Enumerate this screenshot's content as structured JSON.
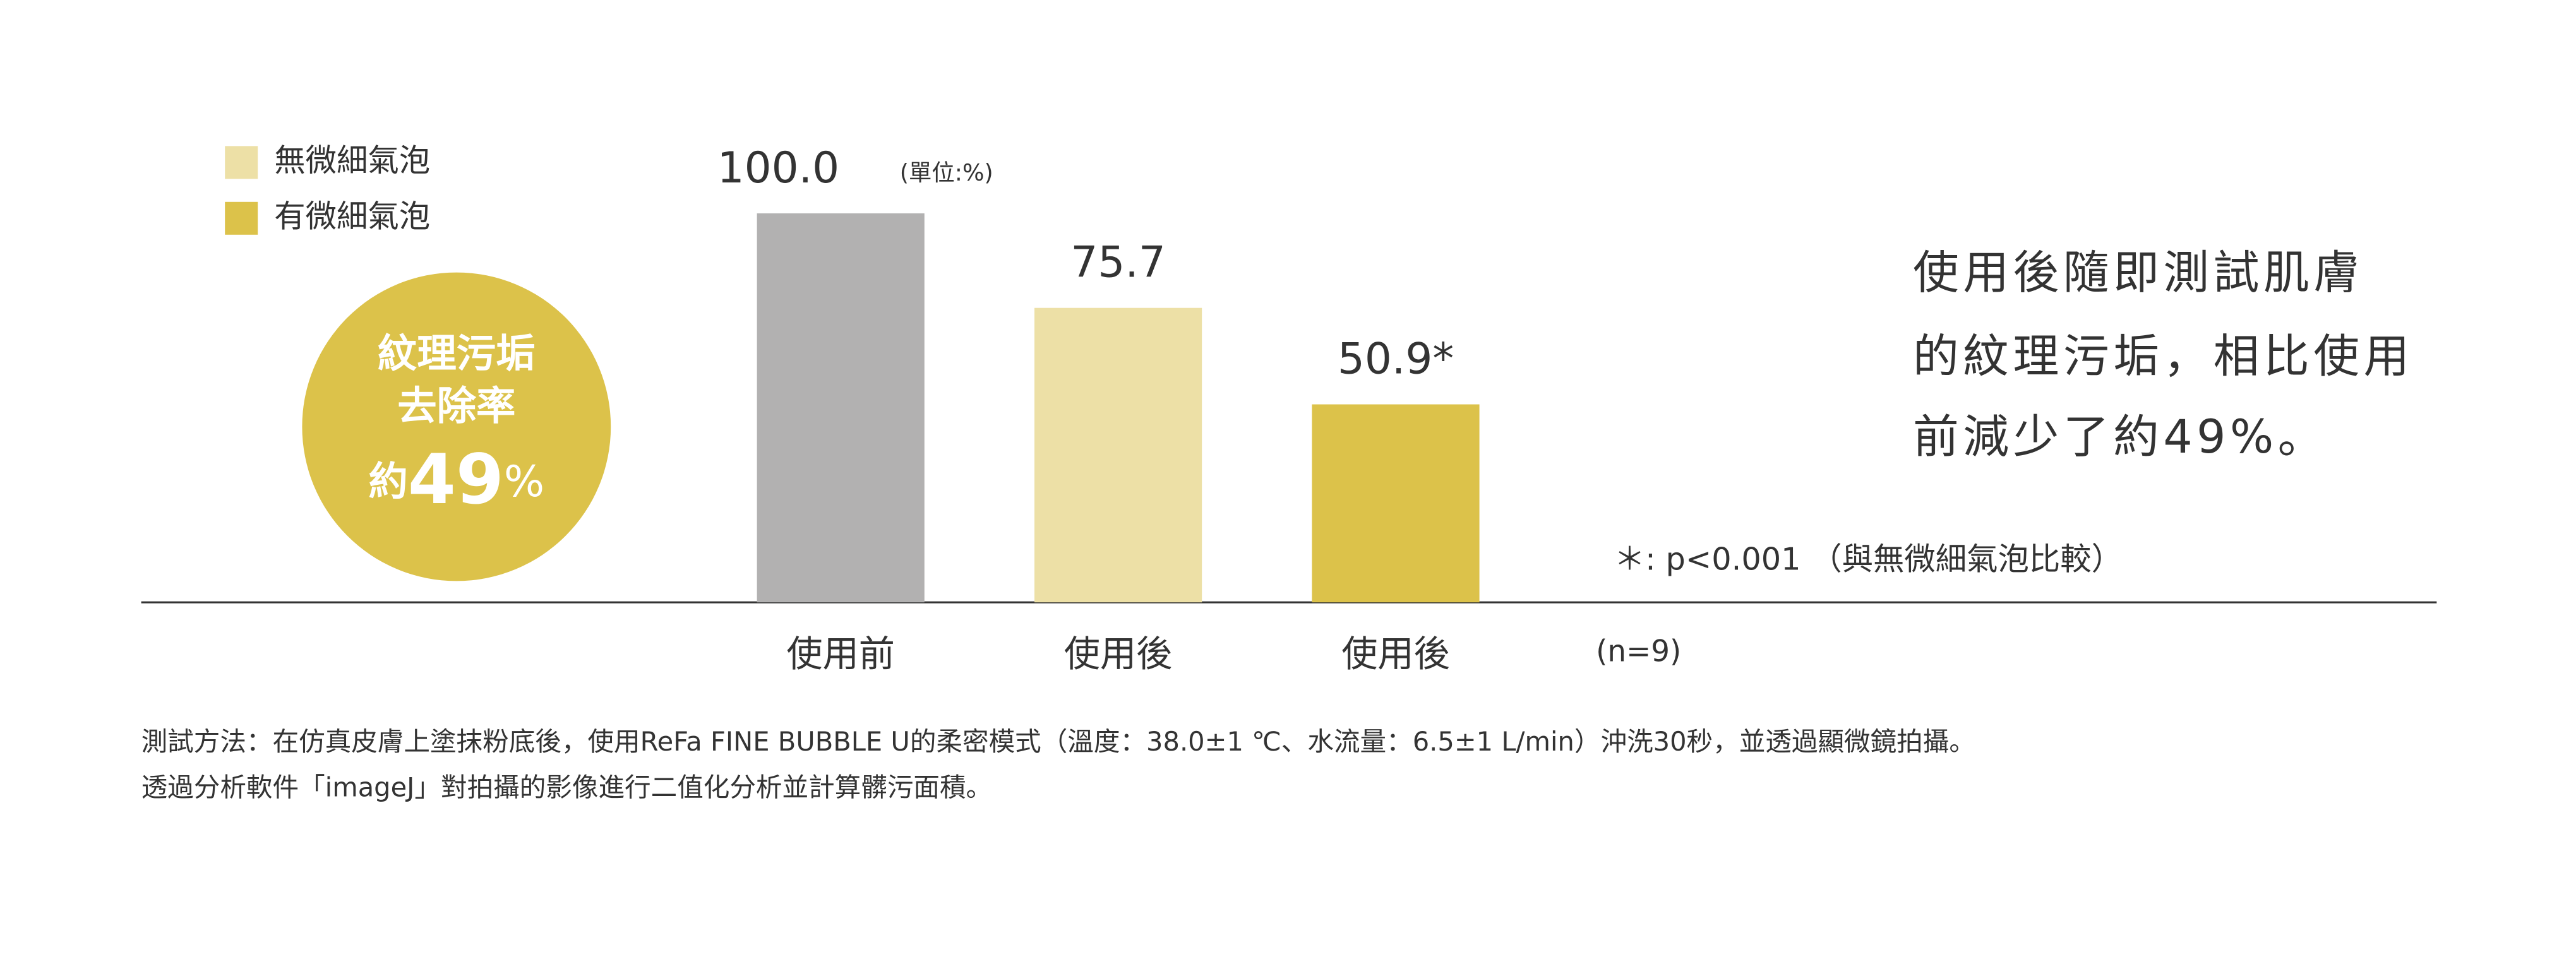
{
  "chart_data": {
    "type": "bar",
    "categories": [
      "使用前",
      "使用後",
      "使用後"
    ],
    "values": [
      100.0,
      75.7,
      50.9
    ],
    "value_labels": [
      "100.0",
      "75.7",
      "50.9*"
    ],
    "colors": [
      "#b2b1b1",
      "#ede0a6",
      "#dcc24a"
    ],
    "unit_label": "(單位:%)",
    "ylim": [
      0,
      100
    ],
    "legend": [
      {
        "name": "無微細氣泡",
        "color": "#ede0a6"
      },
      {
        "name": "有微細氣泡",
        "color": "#dcc24a"
      }
    ],
    "badge": {
      "lines": [
        "紋理污垢",
        "去除率"
      ],
      "prefix": "約",
      "number": "49",
      "unit": "%",
      "color": "#dcc24a"
    },
    "summary": [
      "使用後隨即測試肌膚",
      "的紋理污垢，相比使用",
      "前減少了約49%。"
    ],
    "significance_note": "＊: p<0.001 （與無微細氣泡比較）",
    "sample_size": "(n=9)",
    "footnotes": [
      "測試方法：在仿真皮膚上塗抹粉底後，使用ReFa FINE BUBBLE U的柔密模式（溫度：38.0±1 ℃、水流量：6.5±1 L/min）沖洗30秒，並透過顯微鏡拍攝。",
      "透過分析軟件「imageJ」對拍攝的影像進行二值化分析並計算髒污面積。"
    ]
  }
}
